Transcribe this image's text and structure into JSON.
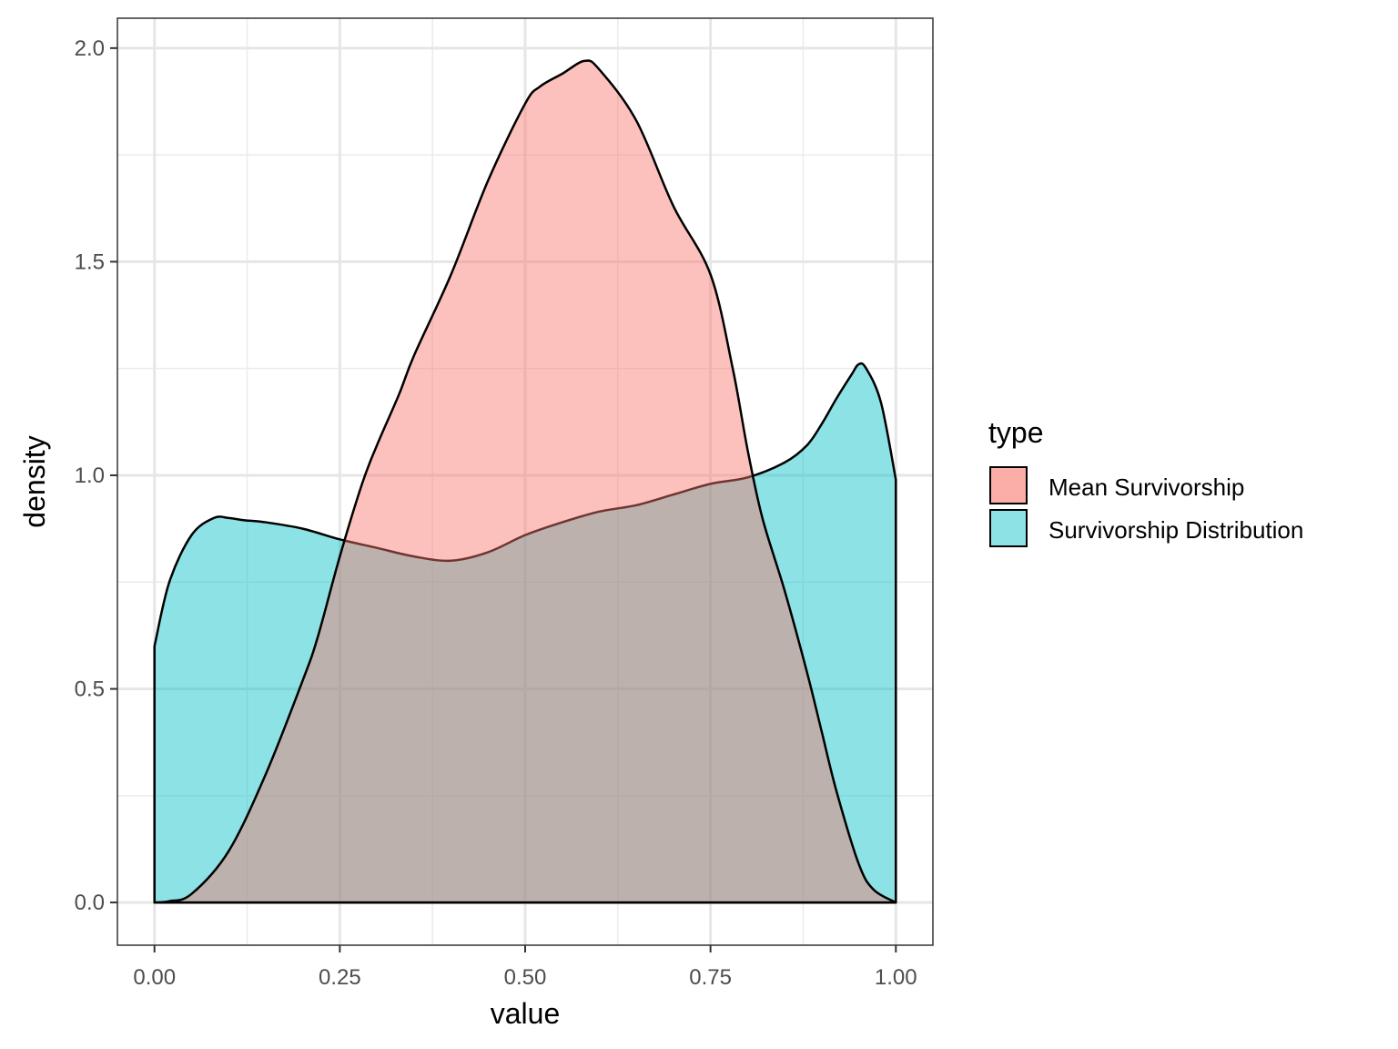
{
  "chart_data": {
    "type": "area",
    "subtype": "density",
    "title": "",
    "xlabel": "value",
    "ylabel": "density",
    "xlim": [
      -0.05,
      1.05
    ],
    "ylim": [
      -0.1,
      2.07
    ],
    "x_ticks": [
      0.0,
      0.25,
      0.5,
      0.75,
      1.0
    ],
    "x_tick_labels": [
      "0.00",
      "0.25",
      "0.50",
      "0.75",
      "1.00"
    ],
    "y_ticks": [
      0.0,
      0.5,
      1.0,
      1.5,
      2.0
    ],
    "y_tick_labels": [
      "0.0",
      "0.5",
      "1.0",
      "1.5",
      "2.0"
    ],
    "x_minor_ticks": [
      0.125,
      0.375,
      0.625,
      0.875
    ],
    "y_minor_ticks": [
      0.25,
      0.75,
      1.25,
      1.75
    ],
    "grid": true,
    "legend": {
      "title": "type",
      "position": "right"
    },
    "series": [
      {
        "name": "Survivorship Distribution",
        "color": "#00BFC4",
        "x": [
          0.0,
          0.02,
          0.05,
          0.08,
          0.1,
          0.12,
          0.15,
          0.2,
          0.25,
          0.3,
          0.35,
          0.4,
          0.45,
          0.5,
          0.55,
          0.6,
          0.65,
          0.7,
          0.75,
          0.8,
          0.85,
          0.88,
          0.9,
          0.92,
          0.94,
          0.95,
          0.96,
          0.98,
          1.0
        ],
        "y": [
          0.6,
          0.75,
          0.86,
          0.9,
          0.9,
          0.895,
          0.89,
          0.875,
          0.85,
          0.83,
          0.81,
          0.8,
          0.82,
          0.86,
          0.89,
          0.915,
          0.93,
          0.955,
          0.98,
          0.995,
          1.03,
          1.07,
          1.12,
          1.18,
          1.235,
          1.26,
          1.25,
          1.17,
          0.99
        ]
      },
      {
        "name": "Mean Survivorship",
        "color": "#F8766D",
        "x": [
          0.0,
          0.02,
          0.05,
          0.1,
          0.15,
          0.2,
          0.22,
          0.25,
          0.28,
          0.3,
          0.33,
          0.35,
          0.4,
          0.45,
          0.5,
          0.52,
          0.55,
          0.58,
          0.6,
          0.65,
          0.7,
          0.75,
          0.78,
          0.8,
          0.82,
          0.85,
          0.88,
          0.9,
          0.92,
          0.95,
          0.97,
          1.0
        ],
        "y": [
          0.0,
          0.003,
          0.02,
          0.12,
          0.3,
          0.52,
          0.62,
          0.81,
          0.98,
          1.07,
          1.19,
          1.28,
          1.47,
          1.69,
          1.87,
          1.91,
          1.94,
          1.97,
          1.95,
          1.83,
          1.63,
          1.47,
          1.25,
          1.06,
          0.9,
          0.73,
          0.54,
          0.4,
          0.26,
          0.09,
          0.03,
          0.0
        ]
      }
    ]
  }
}
